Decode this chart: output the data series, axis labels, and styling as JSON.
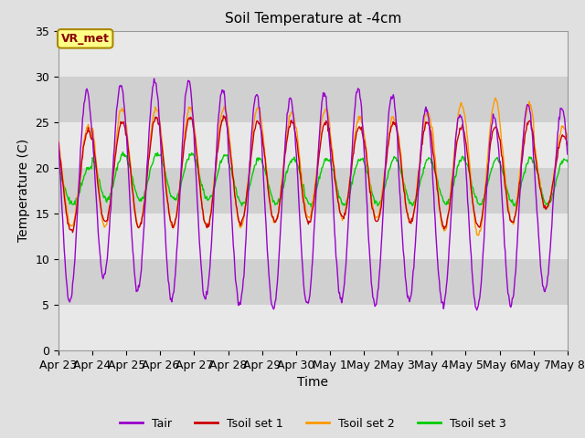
{
  "title": "Soil Temperature at -4cm",
  "xlabel": "Time",
  "ylabel": "Temperature (C)",
  "ylim": [
    0,
    35
  ],
  "yticks": [
    0,
    5,
    10,
    15,
    20,
    25,
    30,
    35
  ],
  "xtick_labels": [
    "Apr 23",
    "Apr 24",
    "Apr 25",
    "Apr 26",
    "Apr 27",
    "Apr 28",
    "Apr 29",
    "Apr 30",
    "May 1",
    "May 2",
    "May 3",
    "May 4",
    "May 5",
    "May 6",
    "May 7",
    "May 8"
  ],
  "legend_labels": [
    "Tair",
    "Tsoil set 1",
    "Tsoil set 2",
    "Tsoil set 3"
  ],
  "line_colors": [
    "#9900cc",
    "#cc0000",
    "#ff9900",
    "#00cc00"
  ],
  "vr_met_label": "VR_met",
  "band_colors": [
    "#e8e8e8",
    "#d8d8d8"
  ],
  "fig_facecolor": "#e0e0e0",
  "title_fontsize": 11,
  "axis_label_fontsize": 10,
  "tick_fontsize": 9
}
